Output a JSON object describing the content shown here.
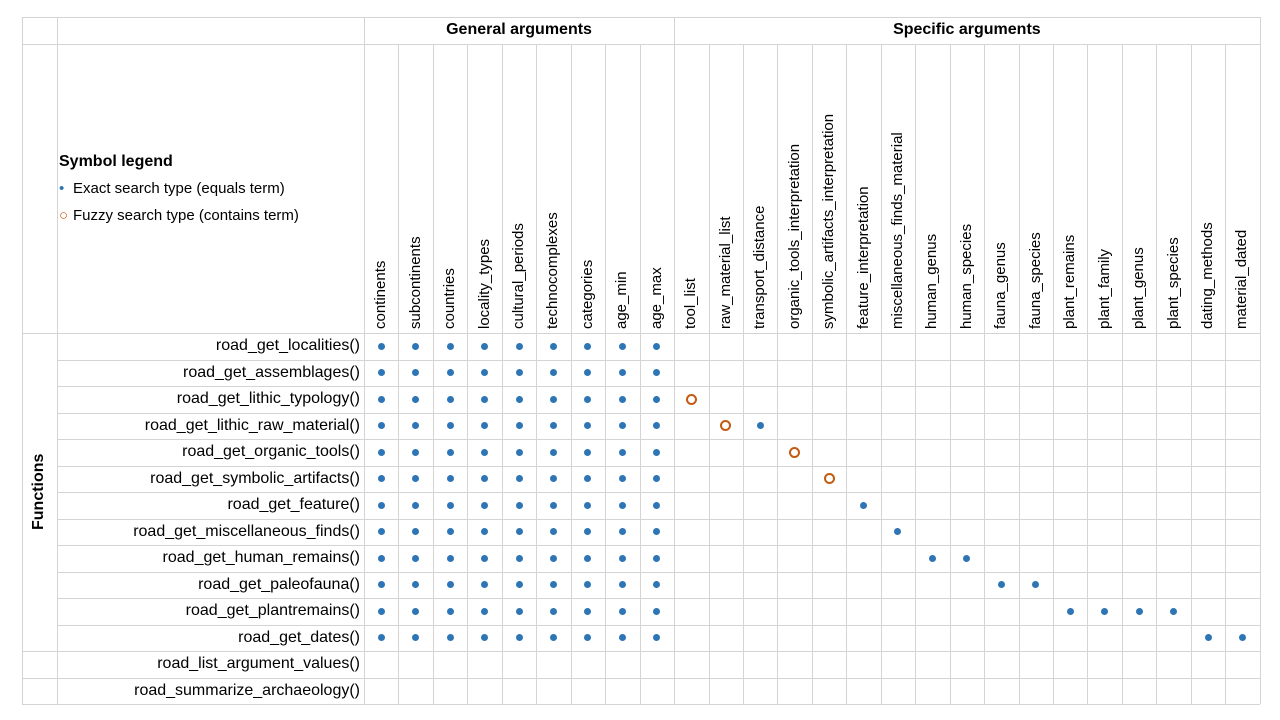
{
  "colors": {
    "exact": "#2e75b6",
    "fuzzy": "#c55a11",
    "grid": "#d4d4d4"
  },
  "headers": {
    "general": "General arguments",
    "specific": "Specific arguments",
    "functions": "Functions"
  },
  "legend": {
    "title": "Symbol legend",
    "exact_symbol": "•",
    "exact_label": "Exact search type (equals term)",
    "fuzzy_symbol": "○",
    "fuzzy_label": "Fuzzy search type (contains term)"
  },
  "arguments": [
    "continents",
    "subcontinents",
    "countries",
    "locality_types",
    "cultural_periods",
    "technocomplexes",
    "categories",
    "age_min",
    "age_max",
    "tool_list",
    "raw_material_list",
    "transport_distance",
    "organic_tools_interpretation",
    "symbolic_artifacts_interpretation",
    "feature_interpretation",
    "miscellaneous_finds_material",
    "human_genus",
    "human_species",
    "fauna_genus",
    "fauna_species",
    "plant_remains",
    "plant_family",
    "plant_genus",
    "plant_species",
    "dating_methods",
    "material_dated"
  ],
  "functions": [
    {
      "name": "road_get_localities()",
      "exact": [
        0,
        1,
        2,
        3,
        4,
        5,
        6,
        7,
        8
      ],
      "fuzzy": []
    },
    {
      "name": "road_get_assemblages()",
      "exact": [
        0,
        1,
        2,
        3,
        4,
        5,
        6,
        7,
        8
      ],
      "fuzzy": []
    },
    {
      "name": "road_get_lithic_typology()",
      "exact": [
        0,
        1,
        2,
        3,
        4,
        5,
        6,
        7,
        8
      ],
      "fuzzy": [
        9
      ]
    },
    {
      "name": "road_get_lithic_raw_material()",
      "exact": [
        0,
        1,
        2,
        3,
        4,
        5,
        6,
        7,
        8,
        11
      ],
      "fuzzy": [
        10
      ]
    },
    {
      "name": "road_get_organic_tools()",
      "exact": [
        0,
        1,
        2,
        3,
        4,
        5,
        6,
        7,
        8
      ],
      "fuzzy": [
        12
      ]
    },
    {
      "name": "road_get_symbolic_artifacts()",
      "exact": [
        0,
        1,
        2,
        3,
        4,
        5,
        6,
        7,
        8
      ],
      "fuzzy": [
        13
      ]
    },
    {
      "name": "road_get_feature()",
      "exact": [
        0,
        1,
        2,
        3,
        4,
        5,
        6,
        7,
        8,
        14
      ],
      "fuzzy": []
    },
    {
      "name": "road_get_miscellaneous_finds()",
      "exact": [
        0,
        1,
        2,
        3,
        4,
        5,
        6,
        7,
        8,
        15
      ],
      "fuzzy": []
    },
    {
      "name": "road_get_human_remains()",
      "exact": [
        0,
        1,
        2,
        3,
        4,
        5,
        6,
        7,
        8,
        16,
        17
      ],
      "fuzzy": []
    },
    {
      "name": "road_get_paleofauna()",
      "exact": [
        0,
        1,
        2,
        3,
        4,
        5,
        6,
        7,
        8,
        18,
        19
      ],
      "fuzzy": []
    },
    {
      "name": "road_get_plantremains()",
      "exact": [
        0,
        1,
        2,
        3,
        4,
        5,
        6,
        7,
        8,
        20,
        21,
        22,
        23
      ],
      "fuzzy": []
    },
    {
      "name": "road_get_dates()",
      "exact": [
        0,
        1,
        2,
        3,
        4,
        5,
        6,
        7,
        8,
        24,
        25
      ],
      "fuzzy": []
    },
    {
      "name": "road_list_argument_values()",
      "exact": [],
      "fuzzy": []
    },
    {
      "name": "road_summarize_archaeology()",
      "exact": [],
      "fuzzy": []
    }
  ]
}
